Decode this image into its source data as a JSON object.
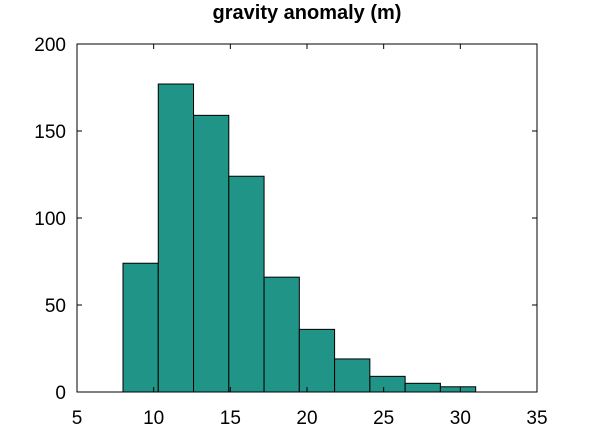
{
  "chart_data": {
    "type": "bar",
    "title": "gravity anomaly (m)",
    "xlabel": "",
    "ylabel": "",
    "xlim": [
      5,
      35
    ],
    "ylim": [
      0,
      200
    ],
    "xticks": [
      5,
      10,
      15,
      20,
      25,
      30,
      35
    ],
    "yticks": [
      0,
      50,
      100,
      150,
      200
    ],
    "grid": false,
    "bar_color": "#219488",
    "bar_edge_color": "#000000",
    "bins": [
      {
        "x0": 8.0,
        "x1": 10.3,
        "value": 74
      },
      {
        "x0": 10.3,
        "x1": 12.6,
        "value": 177
      },
      {
        "x0": 12.6,
        "x1": 14.9,
        "value": 159
      },
      {
        "x0": 14.9,
        "x1": 17.2,
        "value": 124
      },
      {
        "x0": 17.2,
        "x1": 19.5,
        "value": 66
      },
      {
        "x0": 19.5,
        "x1": 21.8,
        "value": 36
      },
      {
        "x0": 21.8,
        "x1": 24.1,
        "value": 19
      },
      {
        "x0": 24.1,
        "x1": 26.4,
        "value": 9
      },
      {
        "x0": 26.4,
        "x1": 28.7,
        "value": 5
      },
      {
        "x0": 28.7,
        "x1": 31.0,
        "value": 3
      }
    ]
  }
}
